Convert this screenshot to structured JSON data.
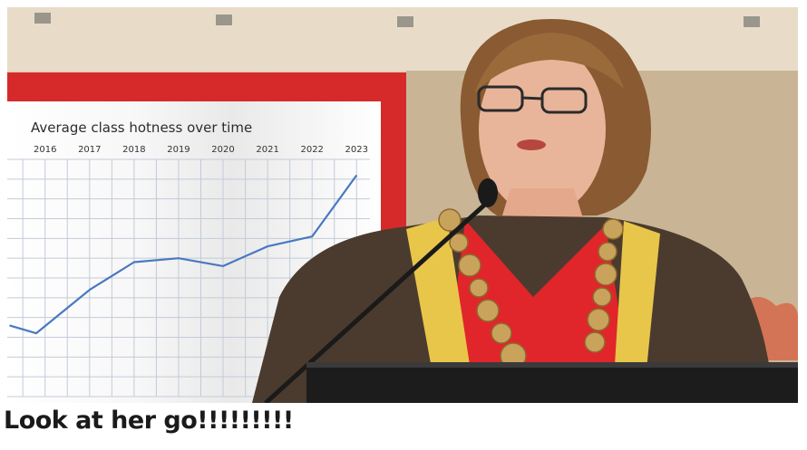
{
  "caption": "Look at her go!!!!!!!!!",
  "chart_data": {
    "type": "line",
    "title": "Average class hotness over time",
    "xlabel": "",
    "ylabel": "",
    "x_ticks": [
      "2016",
      "2017",
      "2018",
      "2019",
      "2020",
      "2021",
      "2022",
      "2023"
    ],
    "series": [
      {
        "x": [
          2015.2,
          2015.8,
          2017.0,
          2018.0,
          2019.0,
          2020.0,
          2021.0,
          2022.0,
          2023.0
        ],
        "y": [
          3.6,
          3.2,
          5.4,
          6.8,
          7.0,
          6.6,
          7.6,
          8.1,
          11.2
        ]
      }
    ],
    "xlim": [
      2015.15,
      2023.3
    ],
    "ylim": [
      0,
      12
    ],
    "grid": true,
    "x_tick_position": "top",
    "line_color": "#4a78c2",
    "grid_color": "#c3cbd8"
  },
  "colors": {
    "board_red": "#d62a2a",
    "gown_brown": "#4b3b2e",
    "robe_red": "#e0262b",
    "gold_stripe": "#e8c64a",
    "podium": "#1c1c1c"
  }
}
